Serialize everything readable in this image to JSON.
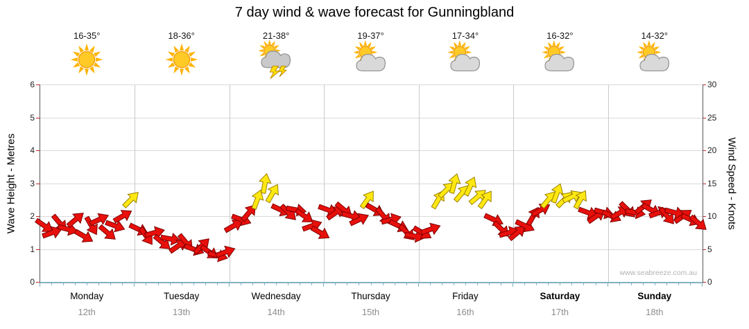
{
  "title": "7 day wind & wave forecast for Gunningbland",
  "watermark": "www.seabreeze.com.au",
  "colors": {
    "arrow_red": "#e8100c",
    "arrow_red_outline": "#7d0000",
    "arrow_yellow": "#ffe812",
    "arrow_yellow_outline": "#9a8000",
    "grid": "#d9d9d9",
    "day_grid": "#c9c9c9",
    "axis_tick": "#cc2222",
    "baseline": "#7fb2c0",
    "sun": "#ffc926",
    "sun_ray": "#ffb300",
    "sun_outline": "#ef9400",
    "cloud": "#d9d9d9",
    "cloud_outline": "#8f8f8f",
    "storm_cloud": "#c9c9c9",
    "bolt": "#ffdf00",
    "bolt_outline": "#b8860b",
    "date_text": "#8c8c8c"
  },
  "chart_data": {
    "type": "scatter",
    "subtype": "wind-direction-arrows",
    "title": "7 day wind & wave forecast for Gunningbland",
    "left_axis": {
      "label": "Wave Height - Metres",
      "range": [
        0,
        6
      ],
      "ticks": [
        0,
        1,
        2,
        3,
        4,
        5,
        6
      ]
    },
    "right_axis": {
      "label": "Wind Speed - Knots",
      "range": [
        0,
        30
      ],
      "ticks": [
        0,
        5,
        10,
        15,
        20,
        25,
        30
      ]
    },
    "arrow_color_rule": {
      "red_below_knots": 12,
      "yellow_at_or_above_knots": 12
    },
    "samples_per_day": 12,
    "days": [
      {
        "name": "Monday",
        "date": "12th",
        "temps": "16-35°",
        "icon": "sunny",
        "bold": false,
        "winds": [
          [
            8.5,
            35
          ],
          [
            7.5,
            -20
          ],
          [
            9,
            50
          ],
          [
            8,
            15
          ],
          [
            9.5,
            -40
          ],
          [
            7,
            30
          ],
          [
            8.5,
            60
          ],
          [
            9.5,
            -25
          ],
          [
            7.5,
            40
          ],
          [
            8.5,
            20
          ],
          [
            10,
            -30
          ],
          [
            12.5,
            -45
          ]
        ]
      },
      {
        "name": "Tuesday",
        "date": "13th",
        "temps": "18-36°",
        "icon": "sunny",
        "bold": false,
        "winds": [
          [
            8,
            25
          ],
          [
            7,
            55
          ],
          [
            7.5,
            -15
          ],
          [
            6,
            40
          ],
          [
            6.5,
            10
          ],
          [
            5.5,
            -35
          ],
          [
            6,
            50
          ],
          [
            5,
            20
          ],
          [
            5.5,
            -45
          ],
          [
            4.5,
            35
          ],
          [
            4,
            15
          ],
          [
            4.5,
            -20
          ]
        ]
      },
      {
        "name": "Wednesday",
        "date": "14th",
        "temps": "21-38°",
        "icon": "storm",
        "bold": false,
        "winds": [
          [
            8.5,
            -30
          ],
          [
            9.5,
            20
          ],
          [
            10.5,
            -50
          ],
          [
            12.5,
            -70
          ],
          [
            15,
            -80
          ],
          [
            13.5,
            -60
          ],
          [
            11,
            25
          ],
          [
            10.5,
            45
          ],
          [
            11,
            10
          ],
          [
            10,
            35
          ],
          [
            8.5,
            -20
          ],
          [
            7.5,
            30
          ]
        ]
      },
      {
        "name": "Thursday",
        "date": "15th",
        "temps": "19-37°",
        "icon": "partly",
        "bold": false,
        "winds": [
          [
            11,
            20
          ],
          [
            10.5,
            -35
          ],
          [
            11,
            40
          ],
          [
            10,
            15
          ],
          [
            9.5,
            -25
          ],
          [
            12.5,
            -55
          ],
          [
            11,
            30
          ],
          [
            10,
            50
          ],
          [
            9.5,
            -15
          ],
          [
            8.5,
            25
          ],
          [
            7.5,
            45
          ],
          [
            7,
            10
          ]
        ]
      },
      {
        "name": "Friday",
        "date": "16th",
        "temps": "17-34°",
        "icon": "partly",
        "bold": false,
        "winds": [
          [
            7.5,
            30
          ],
          [
            8,
            -20
          ],
          [
            12.5,
            -60
          ],
          [
            14,
            -45
          ],
          [
            15,
            -75
          ],
          [
            13.5,
            -50
          ],
          [
            14.5,
            -65
          ],
          [
            13,
            -40
          ],
          [
            12.5,
            -55
          ],
          [
            9.5,
            25
          ],
          [
            8,
            45
          ],
          [
            7.5,
            -15
          ]
        ]
      },
      {
        "name": "Saturday",
        "date": "17th",
        "temps": "16-32°",
        "icon": "partly",
        "bold": true,
        "winds": [
          [
            7.5,
            -40
          ],
          [
            8.5,
            25
          ],
          [
            10,
            -60
          ],
          [
            11,
            -30
          ],
          [
            12.5,
            -50
          ],
          [
            13.5,
            -70
          ],
          [
            12.5,
            -45
          ],
          [
            13,
            -25
          ],
          [
            12.5,
            -60
          ],
          [
            10.5,
            20
          ],
          [
            10,
            -35
          ],
          [
            10.5,
            15
          ]
        ]
      },
      {
        "name": "Sunday",
        "date": "18th",
        "temps": "14-32°",
        "icon": "partly",
        "bold": true,
        "winds": [
          [
            10,
            25
          ],
          [
            10.5,
            -30
          ],
          [
            11,
            45
          ],
          [
            10.5,
            10
          ],
          [
            11.5,
            -40
          ],
          [
            11,
            30
          ],
          [
            10.5,
            -20
          ],
          [
            10,
            50
          ],
          [
            10.5,
            15
          ],
          [
            10,
            -35
          ],
          [
            9.5,
            25
          ],
          [
            9,
            40
          ]
        ]
      }
    ]
  }
}
